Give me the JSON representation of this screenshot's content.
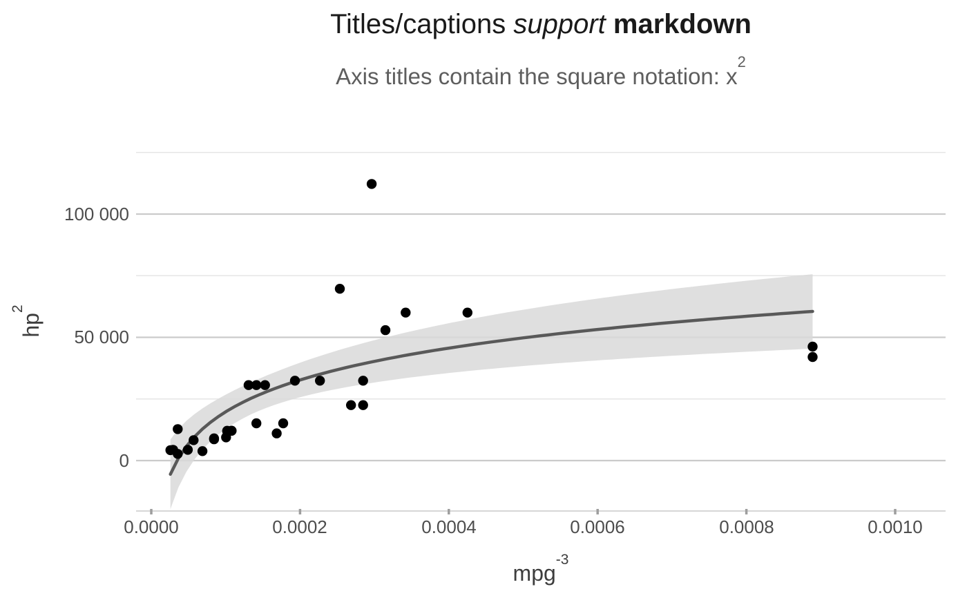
{
  "chart_data": {
    "type": "scatter",
    "title": {
      "regular": "Titles/captions ",
      "italic": "support",
      "bold": " markdown"
    },
    "subtitle": {
      "base": "Axis titles contain the square notation: x",
      "sup": "2"
    },
    "x_axis": {
      "label_base": "mpg",
      "label_sup": "-3",
      "tick_labels": [
        "0.0000",
        "0.0002",
        "0.0004",
        "0.0006",
        "0.0008",
        "0.0010"
      ],
      "tick_values": [
        0,
        0.0002,
        0.0004,
        0.0006,
        0.0008,
        0.001
      ],
      "range": [
        -2e-05,
        0.001068
      ]
    },
    "y_axis": {
      "label_base": "hp",
      "label_sup": "2",
      "tick_labels": [
        "0",
        "50 000",
        "100 000"
      ],
      "tick_values": [
        0,
        50000,
        100000
      ],
      "minor_tick_values": [
        25000,
        75000,
        125000
      ],
      "range": [
        -20450,
        131900
      ]
    },
    "grid": {
      "horizontal_major": true,
      "horizontal_minor": true,
      "vertical": false,
      "legend": "none"
    },
    "points": [
      [
        2.57e-05,
        4225
      ],
      [
        2.94e-05,
        4356
      ],
      [
        3.56e-05,
        2704
      ],
      [
        3.56e-05,
        12769
      ],
      [
        4.91e-05,
        4356
      ],
      [
        5.69e-05,
        8281
      ],
      [
        6.88e-05,
        3844
      ],
      [
        8.44e-05,
        8649
      ],
      [
        8.44e-05,
        9025
      ],
      [
        0.0001006,
        9409
      ],
      [
        0.000102,
        11881
      ],
      [
        0.000102,
        12100
      ],
      [
        0.000108,
        12100
      ],
      [
        0.000108,
        12100
      ],
      [
        0.0001308,
        30625
      ],
      [
        0.0001413,
        15129
      ],
      [
        0.0001413,
        30625
      ],
      [
        0.0001529,
        30625
      ],
      [
        0.0001686,
        11025
      ],
      [
        0.0001773,
        15129
      ],
      [
        0.0001931,
        32400
      ],
      [
        0.0002267,
        32400
      ],
      [
        0.0002535,
        69696
      ],
      [
        0.0002685,
        22500
      ],
      [
        0.0002848,
        22500
      ],
      [
        0.0002848,
        32400
      ],
      [
        0.0002963,
        112225
      ],
      [
        0.0003148,
        52900
      ],
      [
        0.000342,
        60025
      ],
      [
        0.0004251,
        60025
      ],
      [
        0.000889,
        42025
      ],
      [
        0.000889,
        46225
      ]
    ],
    "smooth": {
      "model": "linear fit of y on ln(x) with 95% confidence band",
      "a": 191482,
      "b": 18643,
      "ci": {
        "t_times_s": 36717,
        "mean_log_x": -8.8726,
        "sxx": 24.738,
        "n": 32
      },
      "x_range": [
        2.57e-05,
        0.000889
      ]
    },
    "colors": {
      "point": "#000000",
      "line": "#595959",
      "band": "#d9d9d9",
      "grid_major": "#cbcbcb",
      "grid_minor": "#e5e5e5",
      "axis_line": "#d6d6d6",
      "tick_mark": "#9e9e9e",
      "title": "#1a1a1a",
      "subtitle": "#5e5e5e",
      "axis_text": "#4d4d4d"
    }
  }
}
